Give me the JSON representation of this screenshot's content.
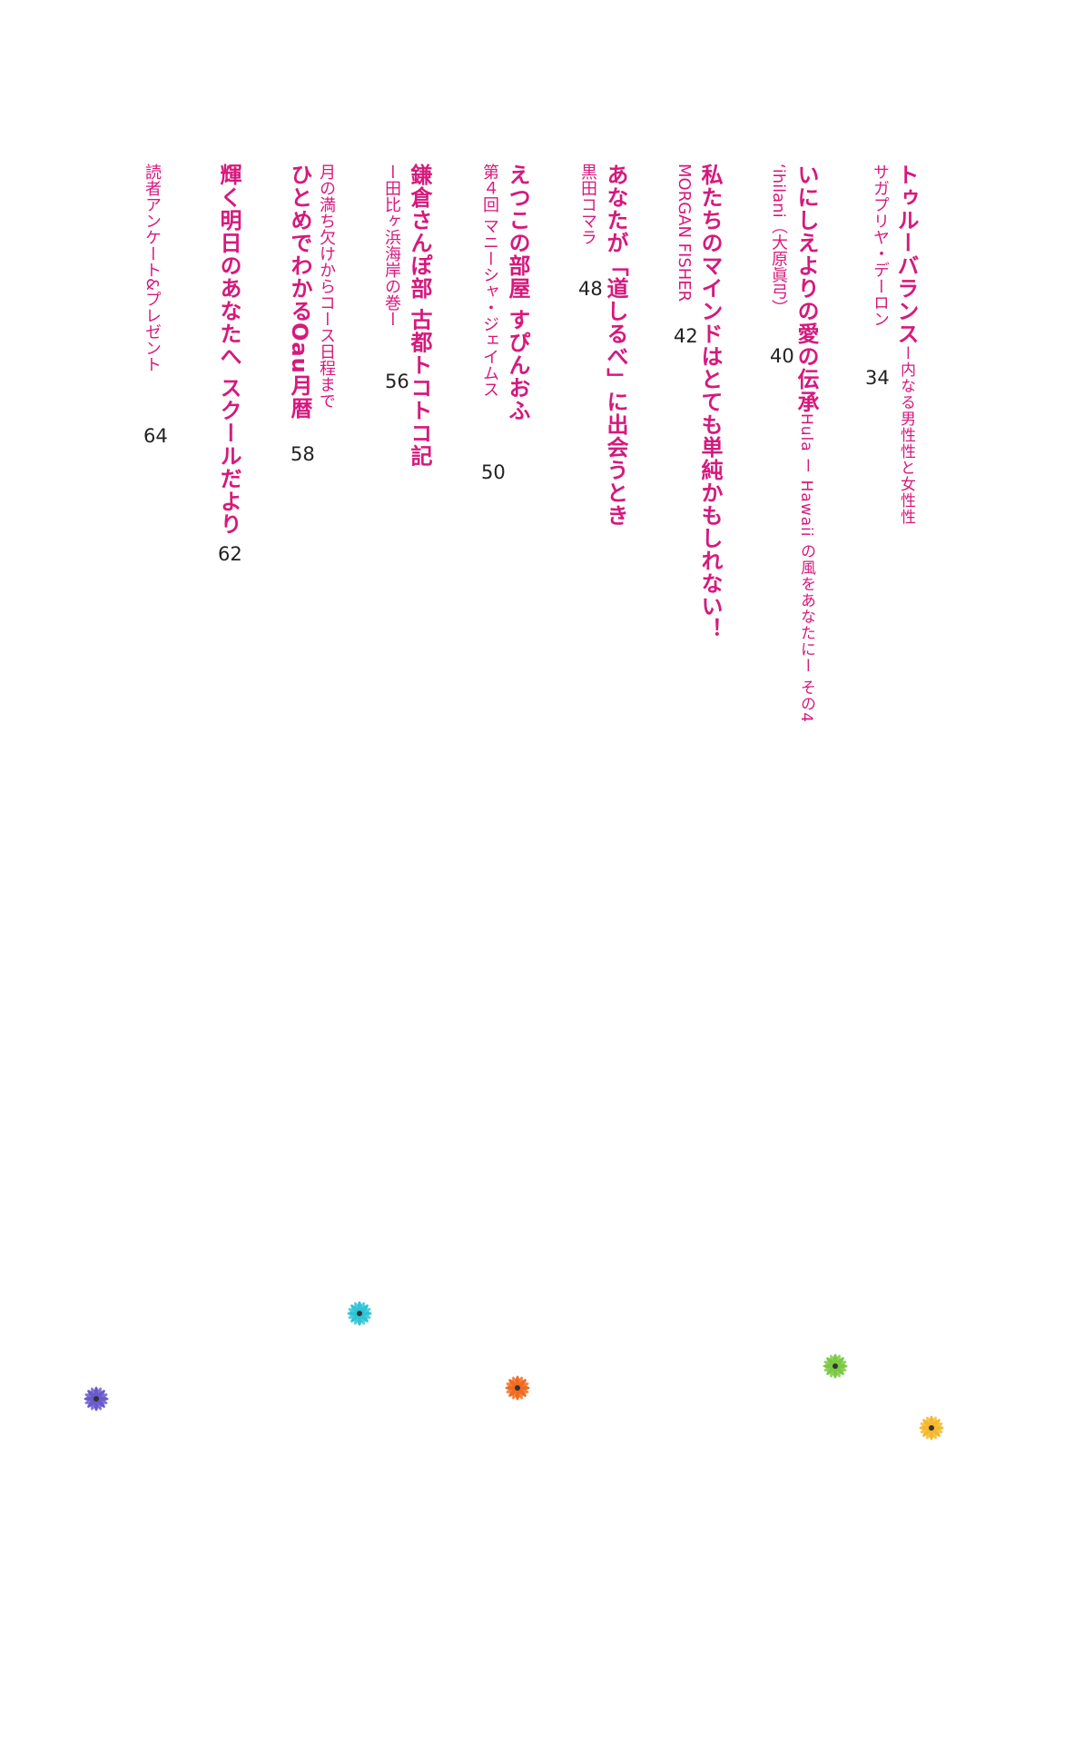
{
  "entries": [
    {
      "title": "トゥルーバランス",
      "title_tail": "ー内なる男性性と女性性",
      "author": "サガプリヤ・デーロン",
      "page": "34"
    },
    {
      "title": "いにしえよりの愛の伝承",
      "title_tail": "Hula ー Hawaii の風をあなたにー その4",
      "author": "‘ihilani（大原眞弓）",
      "page": "40"
    },
    {
      "title": "私たちのマインドはとても単純かもしれない！",
      "author": "MORGAN FISHER",
      "page": "42"
    },
    {
      "title": "あなたが「道しるべ」に出会うとき",
      "author": "黒田コマラ",
      "page": "48"
    },
    {
      "title": "えつこの部屋 すぴんおふ",
      "author": "第４回 マニーシャ・ジェイムス",
      "page": "50"
    },
    {
      "title": "鎌倉さんぽ部 古都トコトコ記",
      "author": "ー田比ヶ浜海岸の巻ー",
      "page": "56"
    },
    {
      "title_pre": "月の満ち欠けからコース日程まで",
      "title": "ひとめでわかるOau月暦",
      "page": "58"
    },
    {
      "title": "輝く明日のあなたへ スクールだより",
      "page": "62"
    },
    {
      "title": "読者アンケート&プレゼント",
      "page": "64"
    }
  ],
  "flowers": [
    {
      "name": "blue-flower",
      "color": "#2ec4d6"
    },
    {
      "name": "green-flower",
      "color": "#7ac943"
    },
    {
      "name": "purple-flower",
      "color": "#6a5acd"
    },
    {
      "name": "orange-flower",
      "color": "#f26b21"
    },
    {
      "name": "yellow-flower",
      "color": "#f5b82e"
    }
  ]
}
